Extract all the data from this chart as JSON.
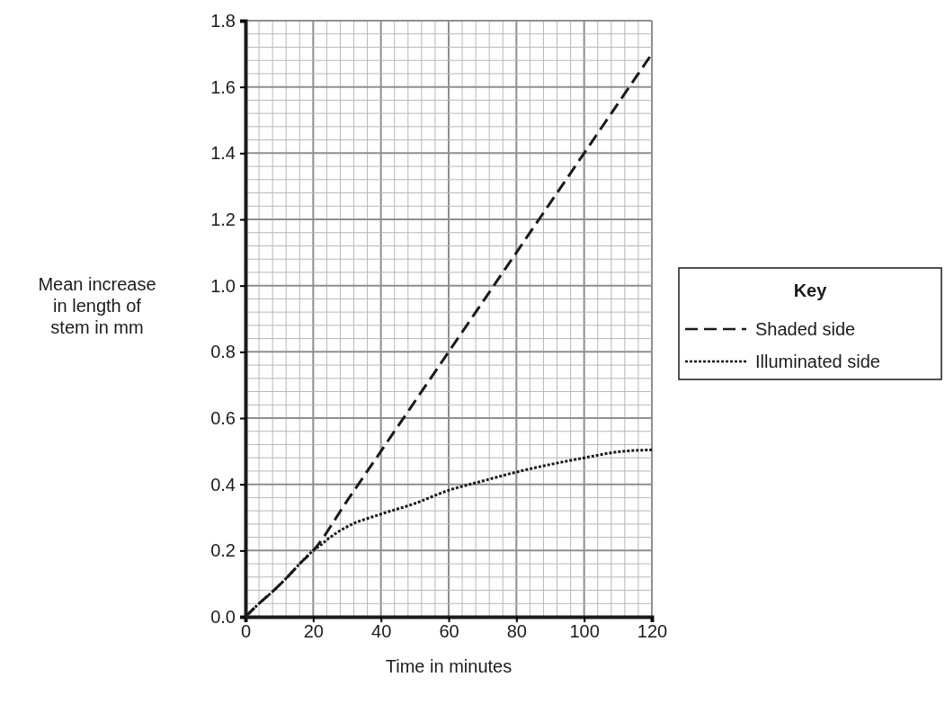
{
  "chart_data": {
    "type": "line",
    "xlabel": "Time in minutes",
    "ylabel": "Mean increase in length of stem in mm",
    "legend_title": "Key",
    "legend": "right",
    "grid": true,
    "xlim": [
      0,
      120
    ],
    "ylim": [
      0,
      1.8
    ],
    "xticks": [
      0,
      20,
      40,
      60,
      80,
      100,
      120
    ],
    "yticks": [
      {
        "value": 0,
        "label": "0.0"
      },
      {
        "value": 0.2,
        "label": "0.2"
      },
      {
        "value": 0.4,
        "label": "0.4"
      },
      {
        "value": 0.6,
        "label": "0.6"
      },
      {
        "value": 0.8,
        "label": "0.8"
      },
      {
        "value": 1,
        "label": "1.0"
      },
      {
        "value": 1.2,
        "label": "1.2"
      },
      {
        "value": 1.4,
        "label": "1.4"
      },
      {
        "value": 1.6,
        "label": "1.6"
      },
      {
        "value": 1.8,
        "label": "1.8"
      }
    ],
    "series": [
      {
        "name": "Shaded side",
        "color": "#1a1a1a",
        "line_style": "dashed",
        "x": [
          0,
          4,
          8,
          12,
          16,
          20,
          30,
          40,
          60,
          80,
          100,
          120
        ],
        "values": [
          0,
          0.04,
          0.076,
          0.116,
          0.16,
          0.2,
          0.35,
          0.5,
          0.8,
          1.1,
          1.4,
          1.7
        ]
      },
      {
        "name": "Illuminated side",
        "color": "#1a1a1a",
        "line_style": "dotted",
        "x": [
          0,
          4,
          8,
          12,
          16,
          20,
          22,
          25,
          30,
          40,
          50,
          60,
          70,
          80,
          90,
          100,
          110,
          120
        ],
        "values": [
          0,
          0.04,
          0.076,
          0.116,
          0.16,
          0.2,
          0.215,
          0.24,
          0.272,
          0.31,
          0.342,
          0.382,
          0.41,
          0.437,
          0.46,
          0.48,
          0.498,
          0.504
        ]
      }
    ]
  }
}
